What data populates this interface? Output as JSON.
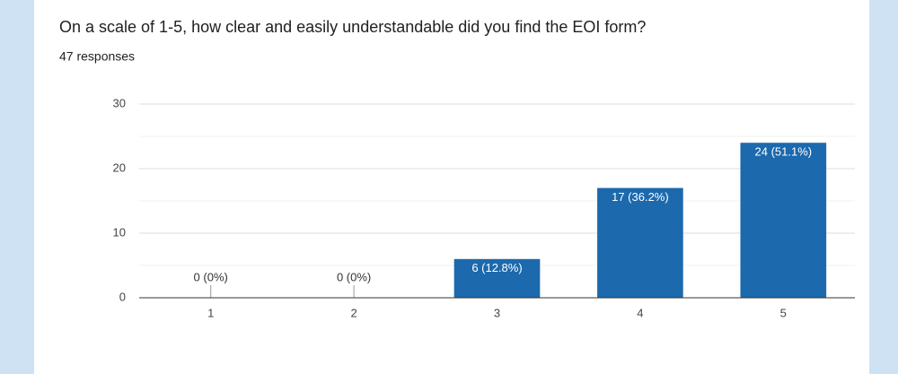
{
  "chart_data": {
    "type": "bar",
    "title": "On a scale of 1-5, how clear and easily understandable did you find the EOI form?",
    "subtitle": "47 responses",
    "categories": [
      "1",
      "2",
      "3",
      "4",
      "5"
    ],
    "values": [
      0,
      0,
      6,
      17,
      24
    ],
    "value_labels": [
      "0 (0%)",
      "0 (0%)",
      "6 (12.8%)",
      "17 (36.2%)",
      "24 (51.1%)"
    ],
    "color": "#1c69ad",
    "ylim": [
      0,
      30
    ],
    "yticks": [
      0,
      10,
      20,
      30
    ],
    "minor_gridlines": [
      5,
      15,
      25
    ],
    "grid": true
  }
}
